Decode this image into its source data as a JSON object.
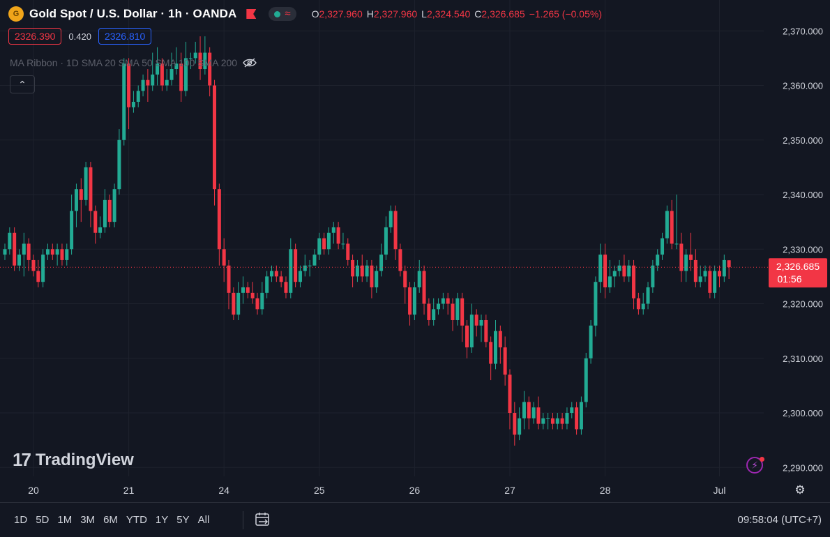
{
  "header": {
    "logo_text": "G",
    "title": "Gold Spot / U.S. Dollar · 1h · OANDA",
    "ohlc": {
      "o_label": "O",
      "o_value": "2,327.960",
      "h_label": "H",
      "h_value": "2,327.960",
      "l_label": "L",
      "l_value": "2,324.540",
      "c_label": "C",
      "c_value": "2,326.685",
      "change": "−1.265 (−0.05%)"
    },
    "status_wave": "≈"
  },
  "quotes": {
    "sell": "2326.390",
    "spread": "0.420",
    "buy": "2326.810"
  },
  "indicator": {
    "label": "MA Ribbon · 1D SMA 20 SMA 50 SMA 100 SMA 200"
  },
  "collapse_glyph": "⌃",
  "watermark": {
    "mark": "17",
    "text": "TradingView"
  },
  "current_price": {
    "value": "2,326.685",
    "countdown": "01:56"
  },
  "bottom_bar": {
    "ranges": [
      "1D",
      "5D",
      "1M",
      "3M",
      "6M",
      "YTD",
      "1Y",
      "5Y",
      "All"
    ],
    "clock": "09:58:04 (UTC+7)"
  },
  "colors": {
    "up": "#22ab94",
    "down": "#f23645",
    "background": "#131722",
    "grid": "#1f2330",
    "text": "#d1d4dc"
  },
  "icons": [
    "gold-logo-icon",
    "flag-icon",
    "market-status-icon",
    "eye-off-icon",
    "chevron-up-icon",
    "tradingview-logo-icon",
    "lightning-icon",
    "settings-gear-icon",
    "calendar-range-icon"
  ],
  "chart_data": {
    "type": "candlestick",
    "symbol": "XAUUSD",
    "interval": "1h",
    "y_ticks": [
      2290,
      2300,
      2310,
      2320,
      2330,
      2340,
      2350,
      2360,
      2370
    ],
    "y_tick_labels": [
      "2,290.000",
      "2,300.000",
      "2,310.000",
      "2,320.000",
      "2,330.000",
      "2,340.000",
      "2,350.000",
      "2,360.000",
      "2,370.000"
    ],
    "ylim": [
      2286.2,
      2373.1
    ],
    "x_ticks": [
      {
        "label": "20",
        "bar": 6
      },
      {
        "label": "21",
        "bar": 26
      },
      {
        "label": "24",
        "bar": 46
      },
      {
        "label": "25",
        "bar": 66
      },
      {
        "label": "26",
        "bar": 86
      },
      {
        "label": "27",
        "bar": 106
      },
      {
        "label": "28",
        "bar": 126
      },
      {
        "label": "Jul",
        "bar": 150
      }
    ],
    "candles": [
      [
        2329,
        2330,
        2331,
        2328
      ],
      [
        2330,
        2333,
        2334,
        2329
      ],
      [
        2333,
        2327,
        2334,
        2326
      ],
      [
        2327,
        2329,
        2330,
        2326
      ],
      [
        2329,
        2331,
        2333,
        2325
      ],
      [
        2331,
        2328,
        2332,
        2326
      ],
      [
        2328,
        2326,
        2329,
        2325
      ],
      [
        2326,
        2324,
        2328,
        2323
      ],
      [
        2324,
        2329,
        2330,
        2323
      ],
      [
        2329,
        2330,
        2331,
        2328
      ],
      [
        2330,
        2329,
        2331,
        2328
      ],
      [
        2329,
        2330,
        2331,
        2327
      ],
      [
        2330,
        2328,
        2331,
        2327
      ],
      [
        2328,
        2330,
        2331,
        2327
      ],
      [
        2330,
        2337,
        2340,
        2329
      ],
      [
        2337,
        2341,
        2342,
        2334
      ],
      [
        2341,
        2339,
        2343,
        2335
      ],
      [
        2339,
        2345,
        2346,
        2338
      ],
      [
        2345,
        2337,
        2346,
        2334
      ],
      [
        2337,
        2333,
        2338,
        2331
      ],
      [
        2333,
        2334,
        2336,
        2332
      ],
      [
        2334,
        2339,
        2341,
        2333
      ],
      [
        2339,
        2335,
        2340,
        2334
      ],
      [
        2335,
        2341,
        2342,
        2334
      ],
      [
        2341,
        2350,
        2352,
        2340
      ],
      [
        2350,
        2364,
        2365,
        2349
      ],
      [
        2364,
        2356,
        2365,
        2352
      ],
      [
        2356,
        2357,
        2359,
        2355
      ],
      [
        2357,
        2359,
        2360,
        2356
      ],
      [
        2359,
        2361,
        2362,
        2358
      ],
      [
        2361,
        2360,
        2363,
        2357
      ],
      [
        2360,
        2362,
        2366,
        2359
      ],
      [
        2362,
        2364,
        2367,
        2360
      ],
      [
        2364,
        2360,
        2365,
        2359
      ],
      [
        2360,
        2361,
        2363,
        2359
      ],
      [
        2361,
        2363,
        2366,
        2360
      ],
      [
        2363,
        2364,
        2367,
        2362
      ],
      [
        2364,
        2359,
        2366,
        2357
      ],
      [
        2359,
        2365,
        2368,
        2358
      ],
      [
        2365,
        2365,
        2366,
        2363
      ],
      [
        2365,
        2366,
        2368,
        2364
      ],
      [
        2366,
        2363,
        2369,
        2361
      ],
      [
        2363,
        2366,
        2369,
        2362
      ],
      [
        2366,
        2360,
        2367,
        2358
      ],
      [
        2360,
        2341,
        2361,
        2338
      ],
      [
        2341,
        2330,
        2342,
        2327
      ],
      [
        2330,
        2327,
        2332,
        2324
      ],
      [
        2327,
        2322,
        2328,
        2319
      ],
      [
        2322,
        2318,
        2323,
        2317
      ],
      [
        2318,
        2322,
        2324,
        2317
      ],
      [
        2322,
        2323,
        2325,
        2320
      ],
      [
        2323,
        2322,
        2324,
        2321
      ],
      [
        2322,
        2321,
        2324,
        2320
      ],
      [
        2321,
        2319,
        2322,
        2318
      ],
      [
        2319,
        2322,
        2324,
        2318
      ],
      [
        2322,
        2325,
        2326,
        2321
      ],
      [
        2325,
        2326,
        2327,
        2324
      ],
      [
        2326,
        2325,
        2327,
        2324
      ],
      [
        2325,
        2324,
        2326,
        2323
      ],
      [
        2324,
        2322,
        2325,
        2321
      ],
      [
        2322,
        2330,
        2332,
        2321
      ],
      [
        2330,
        2324,
        2331,
        2323
      ],
      [
        2324,
        2326,
        2327,
        2323
      ],
      [
        2326,
        2327,
        2329,
        2325
      ],
      [
        2327,
        2327,
        2328,
        2325
      ],
      [
        2327,
        2329,
        2330,
        2327
      ],
      [
        2329,
        2332,
        2333,
        2328
      ],
      [
        2332,
        2330,
        2333,
        2329
      ],
      [
        2330,
        2333,
        2334,
        2329
      ],
      [
        2333,
        2334,
        2335,
        2331
      ],
      [
        2334,
        2331,
        2335,
        2330
      ],
      [
        2331,
        2331,
        2333,
        2330
      ],
      [
        2331,
        2328,
        2332,
        2327
      ],
      [
        2328,
        2325,
        2329,
        2323
      ],
      [
        2325,
        2327,
        2328,
        2324
      ],
      [
        2327,
        2325,
        2329,
        2324
      ],
      [
        2325,
        2327,
        2328,
        2324
      ],
      [
        2327,
        2323,
        2328,
        2321
      ],
      [
        2323,
        2326,
        2327,
        2322
      ],
      [
        2326,
        2329,
        2331,
        2325
      ],
      [
        2329,
        2334,
        2336,
        2328
      ],
      [
        2334,
        2337,
        2338,
        2333
      ],
      [
        2337,
        2330,
        2338,
        2328
      ],
      [
        2330,
        2326,
        2331,
        2325
      ],
      [
        2326,
        2323,
        2327,
        2320
      ],
      [
        2323,
        2318,
        2324,
        2316
      ],
      [
        2318,
        2323,
        2324,
        2317
      ],
      [
        2323,
        2326,
        2328,
        2322
      ],
      [
        2326,
        2320,
        2327,
        2318
      ],
      [
        2320,
        2317,
        2321,
        2316
      ],
      [
        2317,
        2319,
        2321,
        2316
      ],
      [
        2319,
        2320,
        2321,
        2318
      ],
      [
        2320,
        2321,
        2322,
        2319
      ],
      [
        2321,
        2320,
        2322,
        2318
      ],
      [
        2320,
        2317,
        2321,
        2315
      ],
      [
        2317,
        2321,
        2322,
        2316
      ],
      [
        2321,
        2316,
        2322,
        2313
      ],
      [
        2316,
        2312,
        2317,
        2310
      ],
      [
        2312,
        2318,
        2320,
        2311
      ],
      [
        2318,
        2316,
        2319,
        2314
      ],
      [
        2316,
        2317,
        2318,
        2313
      ],
      [
        2317,
        2313,
        2318,
        2312
      ],
      [
        2313,
        2309,
        2314,
        2306
      ],
      [
        2309,
        2315,
        2317,
        2308
      ],
      [
        2315,
        2312,
        2316,
        2309
      ],
      [
        2312,
        2307,
        2314,
        2305
      ],
      [
        2307,
        2300,
        2308,
        2297
      ],
      [
        2300,
        2296,
        2302,
        2294
      ],
      [
        2296,
        2299,
        2301,
        2295
      ],
      [
        2299,
        2302,
        2304,
        2297
      ],
      [
        2302,
        2299,
        2303,
        2297
      ],
      [
        2299,
        2301,
        2302,
        2298
      ],
      [
        2301,
        2298,
        2303,
        2297
      ],
      [
        2298,
        2299,
        2300,
        2297
      ],
      [
        2299,
        2299,
        2300,
        2297
      ],
      [
        2299,
        2298,
        2300,
        2297
      ],
      [
        2298,
        2299,
        2300,
        2297
      ],
      [
        2299,
        2298,
        2300,
        2297
      ],
      [
        2298,
        2300,
        2301,
        2297
      ],
      [
        2300,
        2301,
        2302,
        2299
      ],
      [
        2301,
        2297,
        2302,
        2296
      ],
      [
        2297,
        2302,
        2303,
        2296
      ],
      [
        2302,
        2310,
        2311,
        2301
      ],
      [
        2310,
        2316,
        2317,
        2309
      ],
      [
        2316,
        2324,
        2325,
        2314
      ],
      [
        2324,
        2329,
        2331,
        2322
      ],
      [
        2329,
        2323,
        2331,
        2321
      ],
      [
        2323,
        2325,
        2328,
        2322
      ],
      [
        2325,
        2326,
        2327,
        2323
      ],
      [
        2326,
        2327,
        2328,
        2325
      ],
      [
        2327,
        2325,
        2329,
        2324
      ],
      [
        2325,
        2327,
        2328,
        2324
      ],
      [
        2327,
        2321,
        2328,
        2319
      ],
      [
        2321,
        2319,
        2322,
        2318
      ],
      [
        2319,
        2320,
        2322,
        2318
      ],
      [
        2320,
        2323,
        2324,
        2319
      ],
      [
        2323,
        2327,
        2328,
        2322
      ],
      [
        2327,
        2329,
        2330,
        2326
      ],
      [
        2329,
        2332,
        2333,
        2328
      ],
      [
        2332,
        2337,
        2338,
        2331
      ],
      [
        2337,
        2331,
        2339,
        2330
      ],
      [
        2331,
        2331,
        2340,
        2330
      ],
      [
        2331,
        2326,
        2333,
        2324
      ],
      [
        2326,
        2329,
        2330,
        2324
      ],
      [
        2329,
        2328,
        2333,
        2326
      ],
      [
        2328,
        2324,
        2330,
        2323
      ],
      [
        2324,
        2325,
        2327,
        2323
      ],
      [
        2325,
        2326,
        2327,
        2324
      ],
      [
        2326,
        2322,
        2327,
        2321
      ],
      [
        2322,
        2326,
        2327,
        2321
      ],
      [
        2326,
        2325,
        2327,
        2323
      ],
      [
        2325,
        2328,
        2329,
        2324
      ],
      [
        2327.96,
        2326.685,
        2327.96,
        2324.54
      ]
    ]
  }
}
